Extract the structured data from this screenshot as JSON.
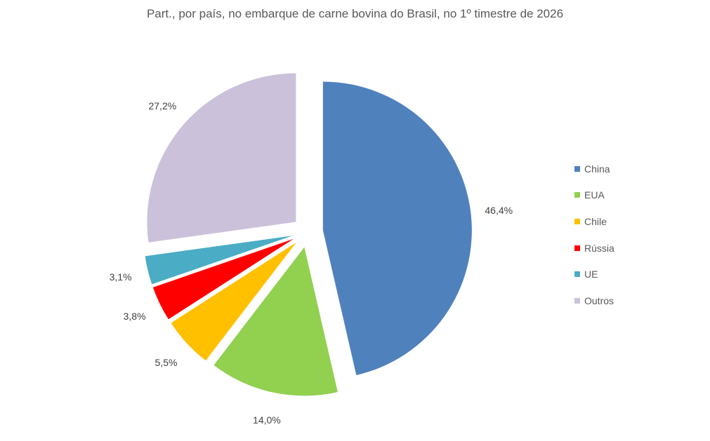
{
  "chart_data": {
    "type": "pie",
    "title": "Part., por país, no embarque de carne bovina do Brasil, no 1º timestre de 2026",
    "categories": [
      "China",
      "EUA",
      "Chile",
      "Rússia",
      "UE",
      "Outros"
    ],
    "values": [
      46.4,
      14.0,
      5.5,
      3.8,
      3.1,
      27.2
    ],
    "labels": [
      "46,4%",
      "14,0%",
      "5,5%",
      "3,8%",
      "3,1%",
      "27,2%"
    ],
    "colors": [
      "#4F81BD",
      "#92D050",
      "#FFC000",
      "#FF0000",
      "#4BACC6",
      "#CCC1DA"
    ],
    "exploded": true,
    "legend_position": "right"
  },
  "legend": [
    {
      "label": "China",
      "color": "#4F81BD"
    },
    {
      "label": "EUA",
      "color": "#92D050"
    },
    {
      "label": "Chile",
      "color": "#FFC000"
    },
    {
      "label": "Rússia",
      "color": "#FF0000"
    },
    {
      "label": "UE",
      "color": "#4BACC6"
    },
    {
      "label": "Outros",
      "color": "#CCC1DA"
    }
  ]
}
